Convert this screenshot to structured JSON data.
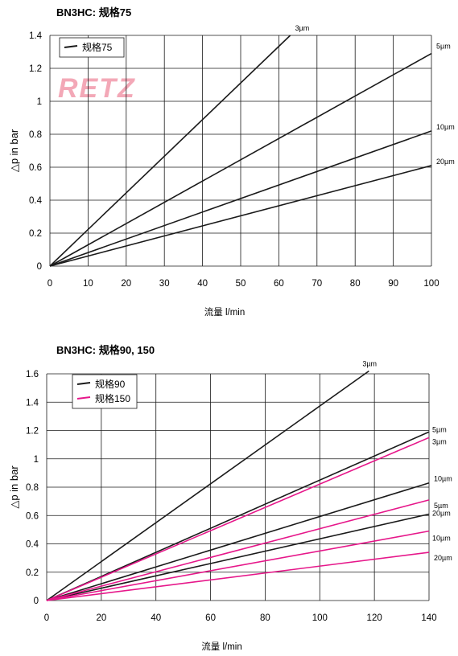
{
  "chart_data": [
    {
      "type": "line",
      "title": "BN3HC: 规格75",
      "xlabel": "流量 l/min",
      "ylabel": "△p in bar",
      "xlim": [
        0,
        100
      ],
      "ylim": [
        0,
        1.4
      ],
      "xticks": [
        0,
        10,
        20,
        30,
        40,
        50,
        60,
        70,
        80,
        90,
        100
      ],
      "yticks": [
        0,
        0.2,
        0.4,
        0.6,
        0.8,
        1,
        1.2,
        1.4
      ],
      "grid": true,
      "legend_position": "top-left",
      "watermark": "RETZ",
      "legend": [
        {
          "label": "规格75",
          "color": "#1a1a1a"
        }
      ],
      "series": [
        {
          "name": "3µm",
          "color": "#1a1a1a",
          "x": [
            0,
            63
          ],
          "y": [
            0,
            1.4
          ]
        },
        {
          "name": "5µm",
          "color": "#1a1a1a",
          "x": [
            0,
            100
          ],
          "y": [
            0,
            1.29
          ]
        },
        {
          "name": "10µm",
          "color": "#1a1a1a",
          "x": [
            0,
            100
          ],
          "y": [
            0,
            0.82
          ]
        },
        {
          "name": "20µm",
          "color": "#1a1a1a",
          "x": [
            0,
            100
          ],
          "y": [
            0,
            0.61
          ]
        }
      ]
    },
    {
      "type": "line",
      "title": "BN3HC: 规格90, 150",
      "xlabel": "流量 l/min",
      "ylabel": "△p in bar",
      "xlim": [
        0,
        140
      ],
      "ylim": [
        0,
        1.6
      ],
      "xticks": [
        0,
        20,
        40,
        60,
        80,
        100,
        120,
        140
      ],
      "yticks": [
        0,
        0.2,
        0.4,
        0.6,
        0.8,
        1,
        1.2,
        1.4,
        1.6
      ],
      "grid": true,
      "legend_position": "top-left",
      "legend": [
        {
          "label": "规格90",
          "color": "#1a1a1a"
        },
        {
          "label": "规格150",
          "color": "#e6178a"
        }
      ],
      "series": [
        {
          "name": "3µm",
          "group": "规格90",
          "color": "#1a1a1a",
          "x": [
            0,
            118
          ],
          "y": [
            0,
            1.62
          ]
        },
        {
          "name": "5µm",
          "group": "规格90",
          "color": "#1a1a1a",
          "x": [
            0,
            140
          ],
          "y": [
            0,
            1.19
          ]
        },
        {
          "name": "10µm",
          "group": "规格90",
          "color": "#1a1a1a",
          "x": [
            0,
            140
          ],
          "y": [
            0,
            0.83
          ]
        },
        {
          "name": "20µm",
          "group": "规格90",
          "color": "#1a1a1a",
          "x": [
            0,
            140
          ],
          "y": [
            0,
            0.61
          ]
        },
        {
          "name": "3µm",
          "group": "规格150",
          "color": "#e6178a",
          "x": [
            0,
            140
          ],
          "y": [
            0,
            1.15
          ]
        },
        {
          "name": "5µm",
          "group": "规格150",
          "color": "#e6178a",
          "x": [
            0,
            140
          ],
          "y": [
            0,
            0.71
          ]
        },
        {
          "name": "10µm",
          "group": "规格150",
          "color": "#e6178a",
          "x": [
            0,
            140
          ],
          "y": [
            0,
            0.49
          ]
        },
        {
          "name": "20µm",
          "group": "规格150",
          "color": "#e6178a",
          "x": [
            0,
            140
          ],
          "y": [
            0,
            0.34
          ]
        }
      ]
    }
  ]
}
